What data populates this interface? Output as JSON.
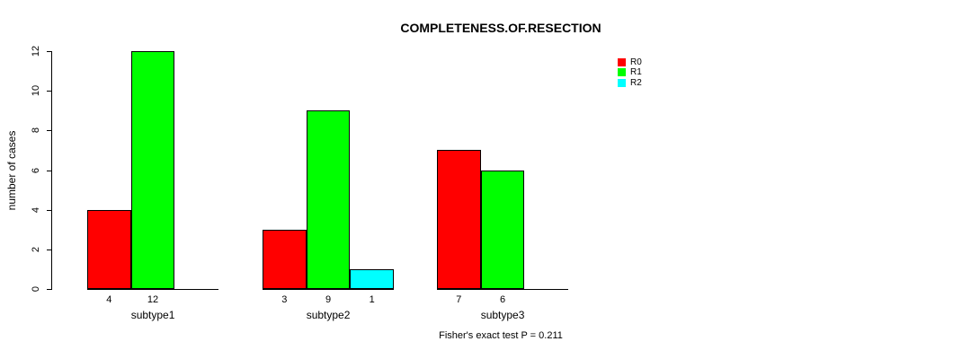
{
  "chart_data": {
    "type": "bar",
    "title": "COMPLETENESS.OF.RESECTION",
    "ylabel": "number of cases",
    "xlabel": "",
    "ylim": [
      0,
      12
    ],
    "yticks": [
      0,
      2,
      4,
      6,
      8,
      10,
      12
    ],
    "categories": [
      "subtype1",
      "subtype2",
      "subtype3"
    ],
    "series": [
      {
        "name": "R0",
        "color": "#FF0000",
        "values": [
          4,
          3,
          7
        ]
      },
      {
        "name": "R1",
        "color": "#00FF00",
        "values": [
          12,
          9,
          6
        ]
      },
      {
        "name": "R2",
        "color": "#00FFFF",
        "values": [
          0,
          1,
          0
        ]
      }
    ],
    "bar_value_labels_shown": true,
    "grid": false,
    "legend_position": "top-right",
    "annotation": "Fisher's exact test P = 0.211",
    "axis_color": "#000000",
    "background_color": "#FFFFFF"
  }
}
